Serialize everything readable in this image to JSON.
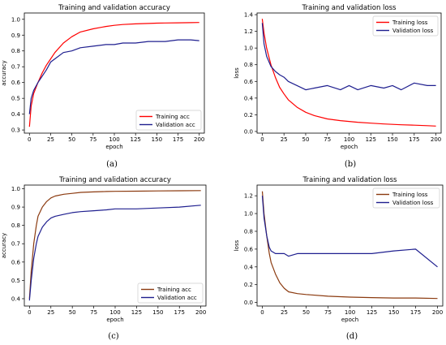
{
  "figure": {
    "captions": [
      "(a)",
      "(b)",
      "(c)",
      "(d)"
    ]
  },
  "chart_data": [
    {
      "type": "line",
      "title": "Training and validation accuracy",
      "xlabel": "epoch",
      "ylabel": "accuracy",
      "xlim": [
        -6,
        206
      ],
      "ylim": [
        0.28,
        1.04
      ],
      "xticks": [
        0,
        25,
        50,
        75,
        100,
        125,
        150,
        175,
        200
      ],
      "yticks": [
        0.3,
        0.4,
        0.5,
        0.6,
        0.7,
        0.8,
        0.9,
        1.0
      ],
      "ytick_labels": [
        "0.3",
        "0.4",
        "0.5",
        "0.6",
        "0.7",
        "0.8",
        "0.9",
        "1.0"
      ],
      "grid": false,
      "legend_position": "bottom-right",
      "x": [
        0,
        2,
        5,
        10,
        15,
        20,
        25,
        30,
        40,
        50,
        60,
        75,
        90,
        100,
        110,
        125,
        140,
        150,
        160,
        175,
        190,
        200
      ],
      "series": [
        {
          "name": "Training acc",
          "color": "#ff0000",
          "values": [
            0.32,
            0.45,
            0.53,
            0.6,
            0.66,
            0.71,
            0.75,
            0.79,
            0.85,
            0.89,
            0.92,
            0.94,
            0.955,
            0.962,
            0.967,
            0.971,
            0.974,
            0.976,
            0.977,
            0.978,
            0.979,
            0.98
          ]
        },
        {
          "name": "Validation acc",
          "color": "#1f1f8f",
          "values": [
            0.4,
            0.5,
            0.55,
            0.6,
            0.64,
            0.68,
            0.73,
            0.75,
            0.79,
            0.8,
            0.82,
            0.83,
            0.84,
            0.84,
            0.85,
            0.85,
            0.86,
            0.86,
            0.86,
            0.87,
            0.87,
            0.865
          ]
        }
      ]
    },
    {
      "type": "line",
      "title": "Training and validation loss",
      "xlabel": "epoch",
      "ylabel": "loss",
      "xlim": [
        -6,
        206
      ],
      "ylim": [
        -0.02,
        1.42
      ],
      "xticks": [
        0,
        25,
        50,
        75,
        100,
        125,
        150,
        175,
        200
      ],
      "yticks": [
        0.0,
        0.2,
        0.4,
        0.6,
        0.8,
        1.0,
        1.2,
        1.4
      ],
      "ytick_labels": [
        "0.0",
        "0.2",
        "0.4",
        "0.6",
        "0.8",
        "1.0",
        "1.2",
        "1.4"
      ],
      "grid": false,
      "legend_position": "top-right",
      "x": [
        0,
        2,
        5,
        10,
        15,
        20,
        25,
        30,
        40,
        50,
        60,
        75,
        90,
        100,
        110,
        125,
        140,
        150,
        160,
        175,
        190,
        200
      ],
      "series": [
        {
          "name": "Training loss",
          "color": "#ff0000",
          "values": [
            1.35,
            1.18,
            1.0,
            0.8,
            0.65,
            0.53,
            0.45,
            0.38,
            0.29,
            0.23,
            0.19,
            0.15,
            0.13,
            0.12,
            0.11,
            0.1,
            0.09,
            0.085,
            0.08,
            0.075,
            0.07,
            0.065
          ]
        },
        {
          "name": "Validation loss",
          "color": "#1f1f8f",
          "values": [
            1.3,
            1.05,
            0.9,
            0.78,
            0.72,
            0.68,
            0.65,
            0.6,
            0.55,
            0.5,
            0.52,
            0.55,
            0.5,
            0.55,
            0.5,
            0.55,
            0.52,
            0.55,
            0.5,
            0.58,
            0.55,
            0.55
          ]
        }
      ]
    },
    {
      "type": "line",
      "title": "Training and validation accuracy",
      "xlabel": "epoch",
      "ylabel": "accuracy",
      "xlim": [
        -6,
        206
      ],
      "ylim": [
        0.36,
        1.02
      ],
      "xticks": [
        0,
        25,
        50,
        75,
        100,
        125,
        150,
        175,
        200
      ],
      "yticks": [
        0.4,
        0.5,
        0.6,
        0.7,
        0.8,
        0.9,
        1.0
      ],
      "ytick_labels": [
        "0.4",
        "0.5",
        "0.6",
        "0.7",
        "0.8",
        "0.9",
        "1.0"
      ],
      "grid": false,
      "legend_position": "bottom-right",
      "x": [
        0,
        2,
        5,
        8,
        10,
        15,
        20,
        25,
        30,
        40,
        50,
        60,
        75,
        90,
        100,
        125,
        150,
        175,
        200
      ],
      "series": [
        {
          "name": "Training acc",
          "color": "#8b3a0f",
          "values": [
            0.4,
            0.55,
            0.7,
            0.8,
            0.85,
            0.9,
            0.93,
            0.95,
            0.96,
            0.97,
            0.975,
            0.98,
            0.983,
            0.985,
            0.986,
            0.987,
            0.988,
            0.989,
            0.99
          ]
        },
        {
          "name": "Validation acc",
          "color": "#1f1f8f",
          "values": [
            0.39,
            0.5,
            0.62,
            0.7,
            0.74,
            0.79,
            0.82,
            0.84,
            0.85,
            0.86,
            0.87,
            0.875,
            0.88,
            0.885,
            0.89,
            0.89,
            0.895,
            0.9,
            0.91
          ]
        }
      ]
    },
    {
      "type": "line",
      "title": "Training and validation loss",
      "xlabel": "epoch",
      "ylabel": "loss",
      "xlim": [
        -6,
        206
      ],
      "ylim": [
        -0.04,
        1.32
      ],
      "xticks": [
        0,
        25,
        50,
        75,
        100,
        125,
        150,
        175,
        200
      ],
      "yticks": [
        0.0,
        0.2,
        0.4,
        0.6,
        0.8,
        1.0,
        1.2
      ],
      "ytick_labels": [
        "0.0",
        "0.2",
        "0.4",
        "0.6",
        "0.8",
        "1.0",
        "1.2"
      ],
      "grid": false,
      "legend_position": "top-right",
      "x": [
        0,
        2,
        5,
        8,
        10,
        15,
        20,
        25,
        30,
        40,
        50,
        75,
        100,
        125,
        150,
        175,
        200
      ],
      "series": [
        {
          "name": "Training loss",
          "color": "#8b3a0f",
          "values": [
            1.25,
            1.0,
            0.75,
            0.55,
            0.45,
            0.32,
            0.22,
            0.16,
            0.12,
            0.1,
            0.09,
            0.07,
            0.06,
            0.055,
            0.05,
            0.05,
            0.045
          ]
        },
        {
          "name": "Validation loss",
          "color": "#1f1f8f",
          "values": [
            1.2,
            0.95,
            0.75,
            0.62,
            0.58,
            0.55,
            0.55,
            0.55,
            0.52,
            0.55,
            0.55,
            0.55,
            0.55,
            0.55,
            0.58,
            0.6,
            0.4
          ]
        }
      ]
    }
  ]
}
